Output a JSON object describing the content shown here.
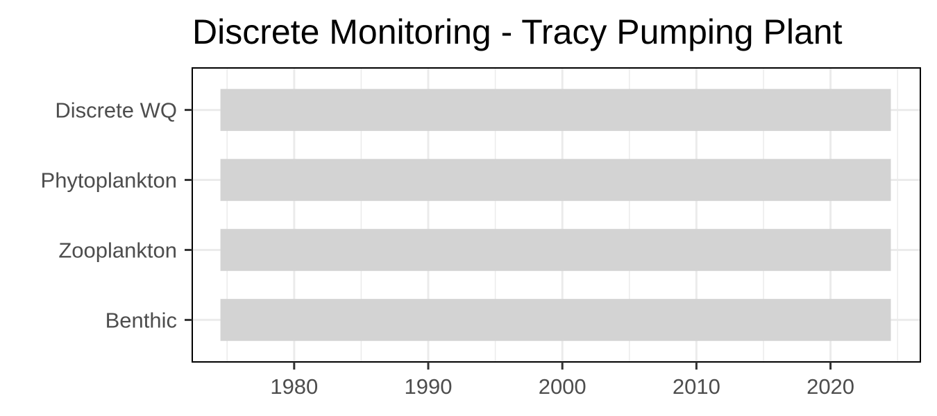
{
  "chart_data": {
    "type": "bar",
    "orientation": "horizontal",
    "title": "Discrete Monitoring - Tracy Pumping Plant",
    "xlabel": "",
    "ylabel": "",
    "categories": [
      "Discrete WQ",
      "Phytoplankton",
      "Zooplankton",
      "Benthic"
    ],
    "series": [
      {
        "ranges": [
          [
            1975,
            2024
          ],
          [
            1975,
            2024
          ],
          [
            1975,
            2024
          ],
          [
            1975,
            2024
          ]
        ]
      }
    ],
    "xlim": [
      1972.4,
      1997.6
    ],
    "x_ticks": [
      1980,
      1990,
      2000,
      2010,
      2020
    ],
    "x_tick_labels": [
      "1980",
      "1990",
      "2000",
      "2010",
      "2020"
    ],
    "xlim_full": [
      1972.4,
      2026.7
    ],
    "grid": true,
    "legend": "none",
    "colors": {
      "bar": "#d3d3d3",
      "grid": "#ebebeb",
      "panel_border": "#000000",
      "tick_text": "#4d4d4d",
      "title": "#000000"
    }
  }
}
